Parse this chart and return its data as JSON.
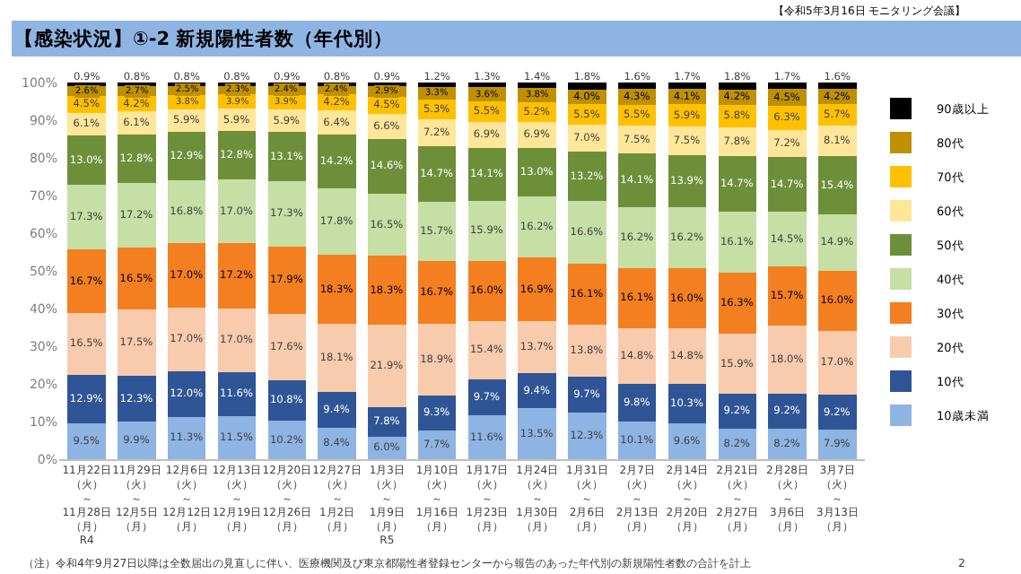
{
  "chart_data": {
    "type": "bar",
    "stacked": true,
    "title": "【感染状況】①-2 新規陽性者数（年代別）",
    "annotations": [
      "【令和5年3月16日 モニタリング会議】",
      "（注）令和4年9月27日以降は全数届出の見直しに伴い、医療機関及び東京都陽性者登録センターから報告のあった年代別の新規陽性者数の合計を計上",
      "2"
    ],
    "categories": [
      "11月22日（火）～11月28日（月）R4",
      "11月29日（火）～12月5日（月）",
      "12月6日（火）～12月12日（月）",
      "12月13日（火）～12月19日（月）",
      "12月20日（火）～12月26日（月）",
      "12月27日（火）～1月2日（月）",
      "1月3日（火）～1月9日（月）R5",
      "1月10日（火）～1月16日（月）",
      "1月17日（火）～1月23日（月）",
      "1月24日（火）～1月30日（月）",
      "1月31日（火）～2月6日（月）",
      "2月7日（火）～2月13日（月）",
      "2月14日（火）～2月20日（月）",
      "2月21日（火）～2月27日（月）",
      "2月28日（火）～3月6日（月）",
      "3月7日（火）～3月13日（月）"
    ],
    "series": [
      {
        "name": "10歳未満",
        "color": "#8db4e2",
        "values": [
          9.5,
          9.9,
          11.3,
          11.5,
          10.2,
          8.4,
          6.0,
          7.7,
          11.6,
          13.5,
          12.3,
          10.1,
          9.6,
          8.2,
          8.2,
          7.9
        ],
        "value_labels": [
          "9.5%",
          "9.9%",
          "11.3%",
          "11.5%",
          "10.2%",
          "8.4%",
          "6.0%",
          "7.7%",
          "11.6%",
          "13.5%",
          "12.3%",
          "10.1%",
          "9.6%",
          "8.2%",
          "8.2%",
          "7.9%"
        ]
      },
      {
        "name": "10代",
        "color": "#2f5597",
        "values": [
          12.9,
          12.3,
          12.0,
          11.6,
          10.8,
          9.4,
          7.8,
          9.3,
          9.7,
          9.4,
          9.7,
          9.8,
          10.3,
          9.2,
          9.2,
          9.2
        ],
        "value_labels": [
          "12.9%",
          "12.3%",
          "12.0%",
          "11.6%",
          "10.8%",
          "9.4%",
          "7.8%",
          "9.3%",
          "9.7%",
          "9.4%",
          "9.7%",
          "9.8%",
          "10.3%",
          "9.2%",
          "9.2%",
          "9.2%"
        ]
      },
      {
        "name": "20代",
        "color": "#f8cbad",
        "values": [
          16.5,
          17.5,
          17.0,
          17.0,
          17.6,
          18.1,
          21.9,
          18.9,
          15.4,
          13.7,
          13.8,
          14.8,
          14.8,
          15.9,
          18.0,
          17.0
        ],
        "value_labels": [
          "16.5%",
          "17.5%",
          "17.0%",
          "17.0%",
          "17.6%",
          "18.1%",
          "21.9%",
          "18.9%",
          "15.4%",
          "13.7%",
          "13.8%",
          "14.8%",
          "14.8%",
          "15.9%",
          "18.0%",
          "17.0%"
        ]
      },
      {
        "name": "30代",
        "color": "#f47f20",
        "values": [
          16.7,
          16.5,
          17.0,
          17.2,
          17.9,
          18.3,
          18.3,
          16.7,
          16.0,
          16.9,
          16.1,
          16.1,
          16.0,
          16.3,
          15.7,
          16.0
        ],
        "value_labels": [
          "16.7%",
          "16.5%",
          "17.0%",
          "17.2%",
          "17.9%",
          "18.3%",
          "18.3%",
          "16.7%",
          "16.0%",
          "16.9%",
          "16.1%",
          "16.1%",
          "16.0%",
          "16.3%",
          "15.7%",
          "16.0%"
        ]
      },
      {
        "name": "40代",
        "color": "#c5dfa5",
        "values": [
          17.3,
          17.2,
          16.8,
          17.0,
          17.3,
          17.8,
          16.5,
          15.7,
          15.9,
          16.2,
          16.6,
          16.2,
          16.2,
          16.1,
          14.5,
          14.9
        ],
        "value_labels": [
          "17.3%",
          "17.2%",
          "16.8%",
          "17.0%",
          "17.3%",
          "17.8%",
          "16.5%",
          "15.7%",
          "15.9%",
          "16.2%",
          "16.6%",
          "16.2%",
          "16.2%",
          "16.1%",
          "14.5%",
          "14.9%"
        ]
      },
      {
        "name": "50代",
        "color": "#6e8f3a",
        "values": [
          13.0,
          12.8,
          12.9,
          12.8,
          13.1,
          14.2,
          14.6,
          14.7,
          14.1,
          13.0,
          13.2,
          14.1,
          13.9,
          14.7,
          14.7,
          15.4
        ],
        "value_labels": [
          "13.0%",
          "12.8%",
          "12.9%",
          "12.8%",
          "13.1%",
          "14.2%",
          "14.6%",
          "14.7%",
          "14.1%",
          "13.0%",
          "13.2%",
          "14.1%",
          "13.9%",
          "14.7%",
          "14.7%",
          "15.4%"
        ]
      },
      {
        "name": "60代",
        "color": "#ffe699",
        "values": [
          6.1,
          6.1,
          5.9,
          5.9,
          5.9,
          6.4,
          6.6,
          7.2,
          6.9,
          6.9,
          7.0,
          7.5,
          7.5,
          7.8,
          7.2,
          8.1
        ],
        "value_labels": [
          "6.1%",
          "6.1%",
          "5.9%",
          "5.9%",
          "5.9%",
          "6.4%",
          "6.6%",
          "7.2%",
          "6.9%",
          "6.9%",
          "7.0%",
          "7.5%",
          "7.5%",
          "7.8%",
          "7.2%",
          "8.1%"
        ]
      },
      {
        "name": "70代",
        "color": "#ffc000",
        "values": [
          4.5,
          4.2,
          3.8,
          3.9,
          3.9,
          4.2,
          4.5,
          5.3,
          5.5,
          5.2,
          5.5,
          5.5,
          5.9,
          5.8,
          6.3,
          5.7
        ],
        "value_labels": [
          "4.5%",
          "4.2%",
          "3.8%",
          "3.9%",
          "3.9%",
          "4.2%",
          "4.5%",
          "5.3%",
          "5.5%",
          "5.2%",
          "5.5%",
          "5.5%",
          "5.9%",
          "5.8%",
          "6.3%",
          "5.7%"
        ]
      },
      {
        "name": "80代",
        "color": "#bf9000",
        "values": [
          2.6,
          2.7,
          2.5,
          2.3,
          2.4,
          2.4,
          2.9,
          3.3,
          3.6,
          3.8,
          4.0,
          4.3,
          4.1,
          4.2,
          4.5,
          4.2
        ],
        "value_labels": [
          "2.6%",
          "2.7%",
          "2.5%",
          "2.3%",
          "2.4%",
          "2.4%",
          "2.9%",
          "3.3%",
          "3.6%",
          "3.8%",
          "4.0%",
          "4.3%",
          "4.1%",
          "4.2%",
          "4.5%",
          "4.2%"
        ]
      },
      {
        "name": "90歳以上",
        "color": "#000000",
        "values": [
          0.9,
          0.8,
          0.8,
          0.8,
          0.9,
          0.8,
          0.9,
          1.2,
          1.3,
          1.4,
          1.8,
          1.6,
          1.7,
          1.8,
          1.7,
          1.6
        ],
        "value_labels": [
          "0.9%",
          "0.8%",
          "0.8%",
          "0.8%",
          "0.9%",
          "0.8%",
          "0.9%",
          "1.2%",
          "1.3%",
          "1.4%",
          "1.8%",
          "1.6%",
          "1.7%",
          "1.8%",
          "1.7%",
          "1.6%"
        ]
      }
    ],
    "ylim": [
      0,
      100
    ],
    "yticks": [
      {
        "value": 0,
        "label": "0%"
      },
      {
        "value": 10,
        "label": "10%"
      },
      {
        "value": 20,
        "label": "20%"
      },
      {
        "value": 30,
        "label": "30%"
      },
      {
        "value": 40,
        "label": "40%"
      },
      {
        "value": 50,
        "label": "50%"
      },
      {
        "value": 60,
        "label": "60%"
      },
      {
        "value": 70,
        "label": "70%"
      },
      {
        "value": 80,
        "label": "80%"
      },
      {
        "value": 90,
        "label": "90%"
      },
      {
        "value": 100,
        "label": "100%"
      }
    ],
    "grid": false,
    "legend": "right"
  }
}
